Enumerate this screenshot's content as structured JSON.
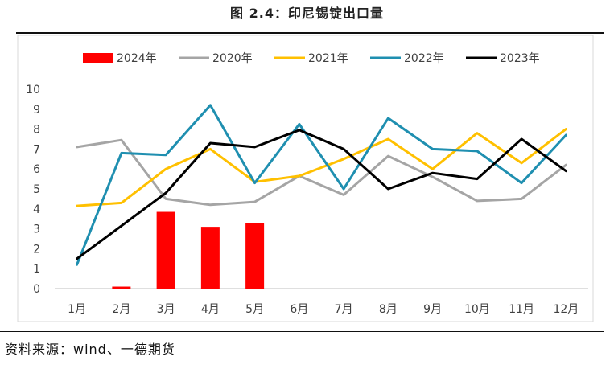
{
  "header": {
    "title": "图 2.4：印尼锡锭出口量"
  },
  "footer": {
    "source": "资料来源：wind、一德期货"
  },
  "chart_data": {
    "type": "bar+line",
    "categories": [
      "1月",
      "2月",
      "3月",
      "4月",
      "5月",
      "6月",
      "7月",
      "8月",
      "9月",
      "10月",
      "11月",
      "12月"
    ],
    "ylim": [
      0,
      10
    ],
    "yticks": [
      0,
      1,
      2,
      3,
      4,
      5,
      6,
      7,
      8,
      9,
      10
    ],
    "grid": false,
    "legend_position": "top",
    "bar_series": {
      "name": "2024年",
      "color": "#ff0000",
      "values": [
        null,
        0.1,
        3.85,
        3.1,
        3.3,
        null,
        null,
        null,
        null,
        null,
        null,
        null
      ]
    },
    "line_series": [
      {
        "name": "2020年",
        "color": "#a5a5a5",
        "values": [
          7.1,
          7.45,
          4.5,
          4.2,
          4.35,
          5.65,
          4.7,
          6.65,
          5.6,
          4.4,
          4.5,
          6.2
        ]
      },
      {
        "name": "2021年",
        "color": "#ffc000",
        "values": [
          4.15,
          4.3,
          6.0,
          7.0,
          5.35,
          5.65,
          6.5,
          7.5,
          6.0,
          7.8,
          6.3,
          8.0
        ]
      },
      {
        "name": "2022年",
        "color": "#1f8fb0",
        "values": [
          1.2,
          6.8,
          6.7,
          9.2,
          5.3,
          8.25,
          5.0,
          8.55,
          7.0,
          6.9,
          5.3,
          7.7
        ]
      },
      {
        "name": "2023年",
        "color": "#000000",
        "values": [
          1.5,
          3.15,
          4.8,
          7.3,
          7.1,
          7.95,
          7.0,
          5.0,
          5.8,
          5.5,
          7.5,
          5.9
        ]
      }
    ]
  }
}
